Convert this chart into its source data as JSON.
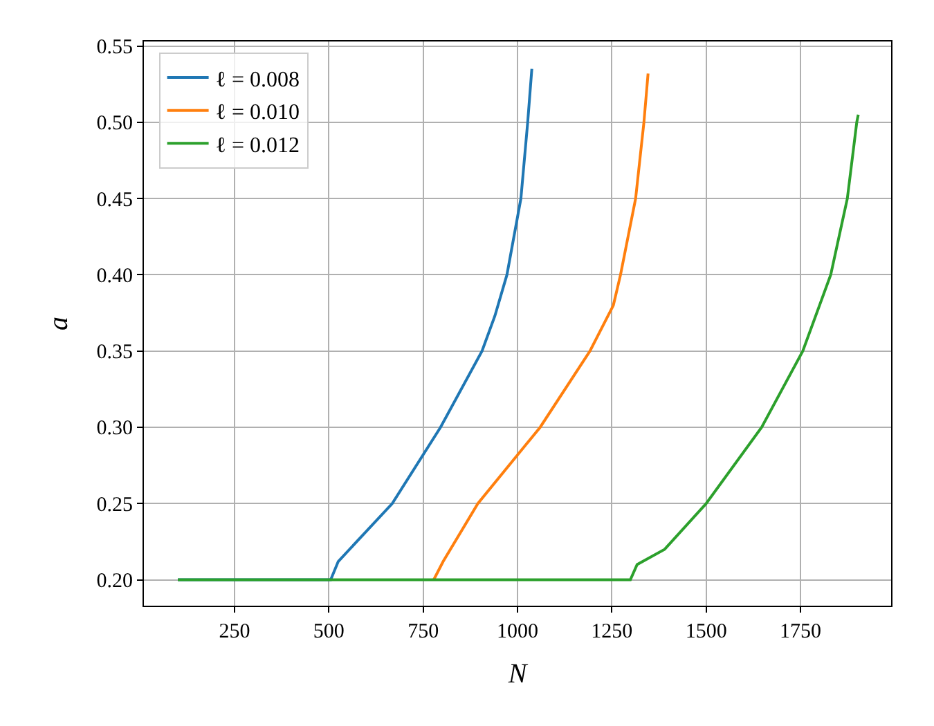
{
  "chart_data": {
    "type": "line",
    "xlabel": "N",
    "ylabel": "a",
    "xlim": [
      10,
      1990
    ],
    "xticks": [
      250,
      500,
      750,
      1000,
      1250,
      1500,
      1750
    ],
    "ylim": [
      0.183,
      0.553
    ],
    "yticks": [
      {
        "value": 0.2,
        "label": "0.20"
      },
      0.25,
      {
        "value": 0.3,
        "label": "0.30"
      },
      0.35,
      {
        "value": 0.4,
        "label": "0.40"
      },
      0.45,
      {
        "value": 0.5,
        "label": "0.50"
      },
      0.55
    ],
    "grid": true,
    "legend": "top left",
    "line_style": "solid",
    "marker": "none",
    "series": [
      {
        "name": "ℓ = 0.008",
        "color": "#1f77b4",
        "x": [
          100,
          505,
          525,
          668,
          796,
          906,
          940,
          972,
          1009,
          1027,
          1038
        ],
        "values": [
          0.2,
          0.2,
          0.212,
          0.25,
          0.3,
          0.35,
          0.373,
          0.4,
          0.45,
          0.5,
          0.535
        ]
      },
      {
        "name": "ℓ = 0.010",
        "color": "#ff7f0e",
        "x": [
          778,
          803,
          895,
          1060,
          1192,
          1254,
          1273,
          1313,
          1335,
          1346
        ],
        "values": [
          0.2,
          0.212,
          0.25,
          0.3,
          0.35,
          0.38,
          0.4,
          0.45,
          0.5,
          0.532
        ]
      },
      {
        "name": "ℓ = 0.012",
        "color": "#2ca02c",
        "x": [
          100,
          1299,
          1317,
          1390,
          1500,
          1647,
          1756,
          1830,
          1874,
          1899,
          1903
        ],
        "values": [
          0.2,
          0.2,
          0.21,
          0.22,
          0.25,
          0.3,
          0.35,
          0.4,
          0.45,
          0.5,
          0.505
        ]
      }
    ]
  }
}
